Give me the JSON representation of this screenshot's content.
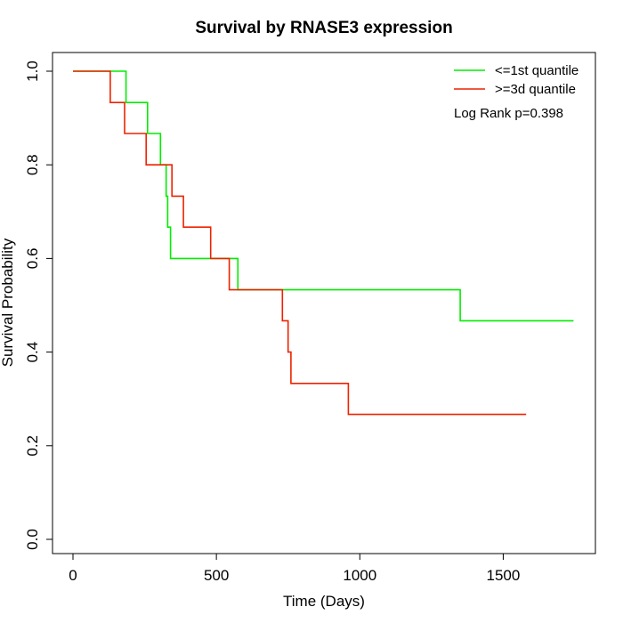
{
  "chart_data": {
    "type": "line",
    "title": "Survival by RNASE3 expression",
    "xlabel": "Time (Days)",
    "ylabel": "Survival Probability",
    "xlim": [
      0,
      1750
    ],
    "ylim": [
      0,
      1
    ],
    "x_ticks": [
      0,
      500,
      1000,
      1500
    ],
    "y_ticks": [
      0.0,
      0.2,
      0.4,
      0.6,
      0.8,
      1.0
    ],
    "x_tick_labels": [
      "0",
      "500",
      "1000",
      "1500"
    ],
    "y_tick_labels": [
      "0.0",
      "0.2",
      "0.4",
      "0.6",
      "0.8",
      "1.0"
    ],
    "grid": false,
    "legend_position": "top-right",
    "annotation": "Log Rank p=0.398",
    "series": [
      {
        "name": "<=1st quantile",
        "color": "#00ee00",
        "x": [
          0,
          185,
          185,
          260,
          260,
          305,
          305,
          325,
          325,
          330,
          330,
          340,
          340,
          575,
          575,
          1350,
          1350,
          1745
        ],
        "y": [
          1.0,
          1.0,
          0.933,
          0.933,
          0.867,
          0.867,
          0.8,
          0.8,
          0.733,
          0.733,
          0.667,
          0.667,
          0.6,
          0.6,
          0.533,
          0.533,
          0.467,
          0.467
        ]
      },
      {
        "name": ">=3d quantile",
        "color": "#ee2200",
        "x": [
          0,
          130,
          130,
          180,
          180,
          255,
          255,
          345,
          345,
          385,
          385,
          480,
          480,
          545,
          545,
          730,
          730,
          750,
          750,
          760,
          760,
          960,
          960,
          1580
        ],
        "y": [
          1.0,
          1.0,
          0.933,
          0.933,
          0.867,
          0.867,
          0.8,
          0.8,
          0.733,
          0.733,
          0.667,
          0.667,
          0.6,
          0.6,
          0.533,
          0.533,
          0.467,
          0.467,
          0.4,
          0.4,
          0.333,
          0.333,
          0.267,
          0.267
        ]
      }
    ]
  }
}
